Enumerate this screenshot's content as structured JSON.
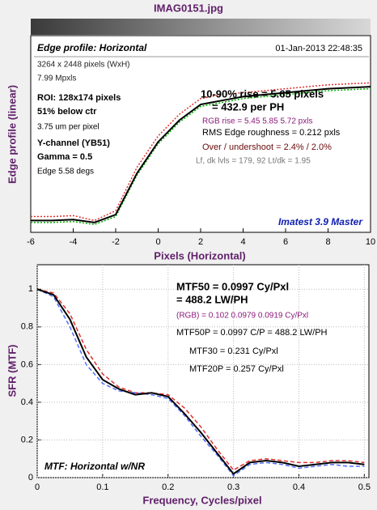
{
  "chart_data": [
    {
      "type": "line",
      "title": "IMAG0151.jpg",
      "xlabel": "Pixels (Horizontal)",
      "ylabel": "Edge profile (linear)",
      "x": [
        -6,
        -5,
        -4,
        -3,
        -2,
        -1,
        0,
        1,
        2,
        3,
        4,
        5,
        6,
        7,
        8,
        9,
        10
      ],
      "series": [
        {
          "color": "#e03030",
          "style": "dotted",
          "values": [
            0.08,
            0.08,
            0.085,
            0.06,
            0.11,
            0.33,
            0.49,
            0.6,
            0.68,
            0.7,
            0.71,
            0.72,
            0.73,
            0.74,
            0.75,
            0.755,
            0.76
          ]
        },
        {
          "color": "#00b000",
          "style": "dotted",
          "values": [
            0.05,
            0.05,
            0.055,
            0.04,
            0.08,
            0.29,
            0.45,
            0.56,
            0.64,
            0.66,
            0.68,
            0.69,
            0.7,
            0.71,
            0.72,
            0.725,
            0.73
          ]
        },
        {
          "color": "#000000",
          "style": "solid",
          "values": [
            0.06,
            0.06,
            0.065,
            0.05,
            0.09,
            0.3,
            0.46,
            0.57,
            0.65,
            0.67,
            0.69,
            0.7,
            0.71,
            0.72,
            0.73,
            0.735,
            0.74
          ]
        }
      ],
      "xlim": [
        -6,
        10
      ],
      "xticks": [
        -6,
        -4,
        -2,
        0,
        2,
        4,
        6,
        8,
        10
      ],
      "ylim": [
        0,
        1
      ],
      "grid": false,
      "annotations": [
        "Edge profile: Horizontal",
        "01-Jan-2013 22:48:35",
        "3264 x 2448 pixels (WxH)",
        "7.99 Mpxls",
        "ROI:  128x174 pixels",
        "51% below ctr",
        "3.75 um per pixel",
        "Y-channel  (YB51)",
        "Gamma = 0.5",
        "Edge 5.58 degs",
        "10-90% rise = 5.65 pixels",
        "= 432.9 per PH",
        "RGB rise = 5.45  5.85  5.72 pxls",
        "RMS Edge roughness = 0.212 pxls",
        "Over / undershoot = 2.4% / 2.0%",
        "Lf, dk lvls = 179, 92   Lt/dk = 1.95",
        "Imatest 3.9 Master"
      ]
    },
    {
      "type": "line",
      "xlabel": "Frequency, Cycles/pixel",
      "ylabel": "SFR (MTF)",
      "x": [
        0,
        0.025,
        0.05,
        0.075,
        0.1,
        0.125,
        0.15,
        0.175,
        0.2,
        0.225,
        0.25,
        0.275,
        0.3,
        0.325,
        0.35,
        0.375,
        0.4,
        0.425,
        0.45,
        0.475,
        0.5
      ],
      "series": [
        {
          "color": "#e03030",
          "style": "dashed",
          "values": [
            1.0,
            0.98,
            0.87,
            0.68,
            0.55,
            0.48,
            0.45,
            0.45,
            0.44,
            0.37,
            0.27,
            0.15,
            0.04,
            0.09,
            0.1,
            0.09,
            0.08,
            0.08,
            0.09,
            0.09,
            0.08
          ]
        },
        {
          "color": "#5070ff",
          "style": "dashed",
          "values": [
            1.0,
            0.96,
            0.8,
            0.6,
            0.5,
            0.46,
            0.45,
            0.44,
            0.42,
            0.33,
            0.22,
            0.12,
            0.01,
            0.07,
            0.08,
            0.07,
            0.05,
            0.06,
            0.07,
            0.06,
            0.06
          ]
        },
        {
          "color": "#000000",
          "style": "solid",
          "values": [
            1.0,
            0.97,
            0.84,
            0.64,
            0.52,
            0.47,
            0.44,
            0.45,
            0.43,
            0.34,
            0.24,
            0.13,
            0.02,
            0.08,
            0.09,
            0.08,
            0.06,
            0.07,
            0.08,
            0.08,
            0.07
          ]
        }
      ],
      "xlim": [
        0,
        0.507
      ],
      "xticks": [
        0,
        0.1,
        0.2,
        0.3,
        0.4,
        0.5
      ],
      "ylim": [
        0,
        1.13
      ],
      "yticks": [
        0,
        0.2,
        0.4,
        0.6,
        0.8,
        1
      ],
      "grid": true,
      "annotations": [
        "MTF50 = 0.0997 Cy/Pxl",
        "= 488.2 LW/PH",
        "(RGB) = 0.102  0.0979  0.0919 Cy/Pxl",
        "MTF50P = 0.0997 C/P = 488.2 LW/PH",
        "MTF30 = 0.231 Cy/Pxl",
        "MTF20P = 0.257 Cy/Pxl",
        "MTF: Horizontal w/NR"
      ]
    }
  ]
}
